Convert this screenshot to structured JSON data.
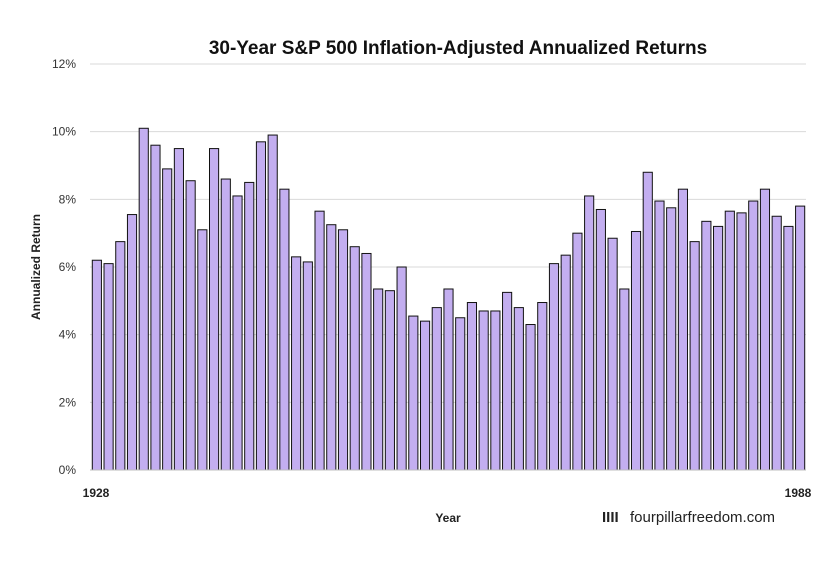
{
  "chart_data": {
    "type": "bar",
    "title": "30-Year S&P 500 Inflation-Adjusted Annualized Returns",
    "xlabel": "Year",
    "ylabel": "Annualized Return",
    "x_tick_labels": [
      "1928",
      "1988"
    ],
    "y_ticks": [
      "0%",
      "2%",
      "4%",
      "6%",
      "8%",
      "10%",
      "12%"
    ],
    "ylim": [
      0,
      12
    ],
    "grid": true,
    "bar_color": "#c3aef0",
    "watermark": {
      "mark": "IIII",
      "text": "fourpillarfreedom.com"
    },
    "categories": [
      "1928",
      "1929",
      "1930",
      "1931",
      "1932",
      "1933",
      "1934",
      "1935",
      "1936",
      "1937",
      "1938",
      "1939",
      "1940",
      "1941",
      "1942",
      "1943",
      "1944",
      "1945",
      "1946",
      "1947",
      "1948",
      "1949",
      "1950",
      "1951",
      "1952",
      "1953",
      "1954",
      "1955",
      "1956",
      "1957",
      "1958",
      "1959",
      "1960",
      "1961",
      "1962",
      "1963",
      "1964",
      "1965",
      "1966",
      "1967",
      "1968",
      "1969",
      "1970",
      "1971",
      "1972",
      "1973",
      "1974",
      "1975",
      "1976",
      "1977",
      "1978",
      "1979",
      "1980",
      "1981",
      "1982",
      "1983",
      "1984",
      "1985",
      "1986",
      "1987",
      "1988"
    ],
    "values": [
      6.2,
      6.1,
      6.75,
      7.55,
      10.1,
      9.6,
      8.9,
      9.5,
      8.55,
      7.1,
      9.5,
      8.6,
      8.1,
      8.5,
      9.7,
      9.9,
      8.3,
      6.3,
      6.15,
      7.65,
      7.25,
      7.1,
      6.6,
      6.4,
      5.35,
      5.3,
      6.0,
      4.55,
      4.4,
      4.8,
      5.35,
      4.5,
      4.95,
      4.7,
      4.7,
      5.25,
      4.8,
      4.3,
      4.95,
      6.1,
      6.35,
      7.0,
      8.1,
      7.7,
      6.85,
      5.35,
      7.05,
      8.8,
      7.95,
      7.75,
      8.3,
      6.75,
      7.35,
      7.2,
      7.65,
      7.6,
      7.95,
      8.3,
      7.5,
      7.2,
      7.8
    ]
  }
}
